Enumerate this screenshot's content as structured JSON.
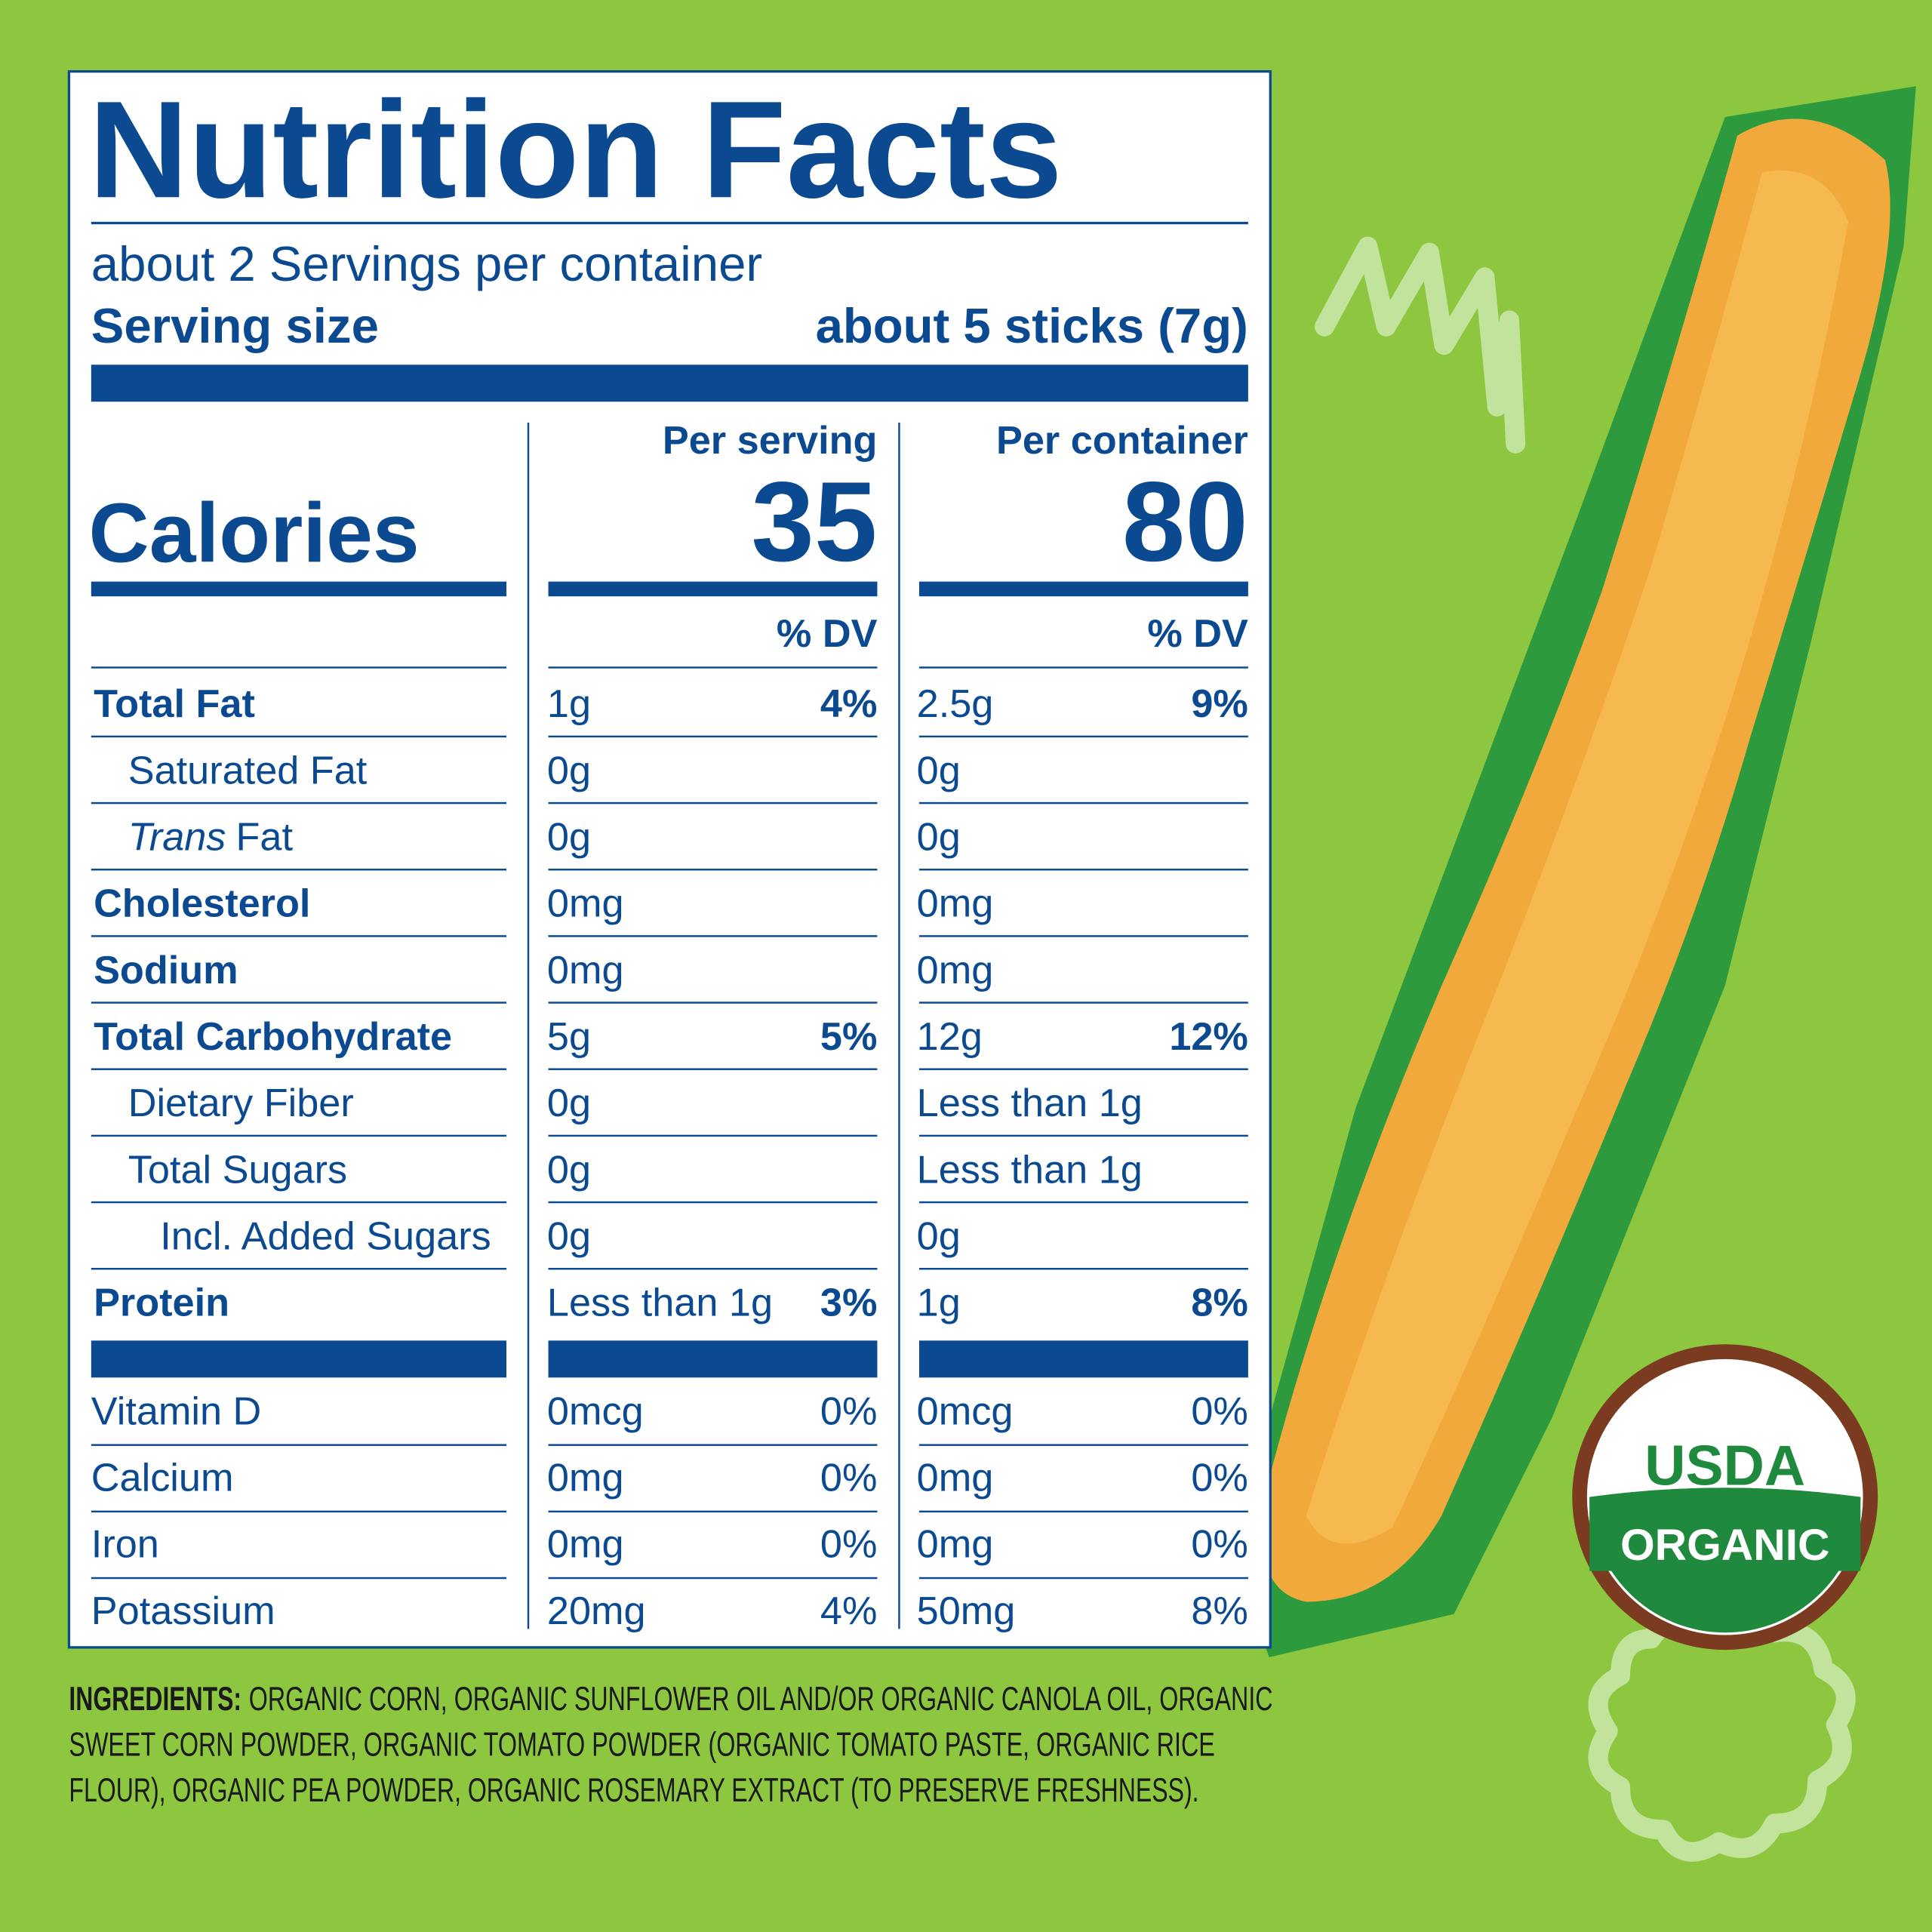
{
  "header": {
    "title": "Nutrition Facts",
    "servings": "about 2 Servings per container",
    "serving_size_label": "Serving size",
    "serving_size_value": "about 5 sticks (7g)"
  },
  "columns": {
    "serving_heading": "Per serving",
    "container_heading": "Per container",
    "calories_label": "Calories",
    "serving_calories": "35",
    "container_calories": "80",
    "serving_dv_heading": "% DV",
    "container_dv_heading": "% DV"
  },
  "nutrients": [
    {
      "label": "Total Fat",
      "level": 0,
      "serving": {
        "amount": "1g",
        "dv": "4%"
      },
      "container": {
        "amount": "2.5g",
        "dv": "9%"
      }
    },
    {
      "label": "Saturated Fat",
      "level": 1,
      "serving": {
        "amount": "0g"
      },
      "container": {
        "amount": "0g"
      }
    },
    {
      "label_italic": "Trans",
      "label": "Fat",
      "level": 1,
      "serving": {
        "amount": "0g"
      },
      "container": {
        "amount": "0g"
      }
    },
    {
      "label": "Cholesterol",
      "level": 0,
      "serving": {
        "amount": "0mg"
      },
      "container": {
        "amount": "0mg"
      }
    },
    {
      "label": "Sodium",
      "level": 0,
      "serving": {
        "amount": "0mg"
      },
      "container": {
        "amount": "0mg"
      }
    },
    {
      "label": "Total Carbohydrate",
      "level": 0,
      "serving": {
        "amount": "5g",
        "dv": "5%"
      },
      "container": {
        "amount": "12g",
        "dv": "12%"
      }
    },
    {
      "label": "Dietary Fiber",
      "level": 1,
      "serving": {
        "amount": "0g"
      },
      "container": {
        "amount": "Less than 1g"
      }
    },
    {
      "label": "Total Sugars",
      "level": 1,
      "serving": {
        "amount": "0g"
      },
      "container": {
        "amount": "Less than 1g"
      }
    },
    {
      "label": "Incl. Added Sugars",
      "level": 2,
      "serving": {
        "amount": "0g"
      },
      "container": {
        "amount": "0g"
      }
    },
    {
      "label": "Protein",
      "level": 0,
      "serving": {
        "amount": "Less than 1g",
        "dv": "3%"
      },
      "container": {
        "amount": "1g",
        "dv": "8%"
      }
    }
  ],
  "vitamins": [
    {
      "label": "Vitamin D",
      "serving": {
        "amount": "0mcg",
        "dv": "0%"
      },
      "container": {
        "amount": "0mcg",
        "dv": "0%"
      }
    },
    {
      "label": "Calcium",
      "serving": {
        "amount": "0mg",
        "dv": "0%"
      },
      "container": {
        "amount": "0mg",
        "dv": "0%"
      }
    },
    {
      "label": "Iron",
      "serving": {
        "amount": "0mg",
        "dv": "0%"
      },
      "container": {
        "amount": "0mg",
        "dv": "0%"
      }
    },
    {
      "label": "Potassium",
      "serving": {
        "amount": "20mg",
        "dv": "4%"
      },
      "container": {
        "amount": "50mg",
        "dv": "8%"
      }
    }
  ],
  "ingredients": {
    "label": "INGREDIENTS:",
    "lines": [
      "ORGANIC CORN, ORGANIC SUNFLOWER OIL AND/OR ORGANIC CANOLA OIL, ORGANIC",
      "SWEET CORN POWDER, ORGANIC TOMATO POWDER (ORGANIC TOMATO PASTE, ORGANIC RICE",
      "FLOUR), ORGANIC PEA POWDER, ORGANIC ROSEMARY EXTRACT (TO PRESERVE FRESHNESS)."
    ]
  },
  "seal": {
    "top": "USDA",
    "bottom": "ORGANIC"
  }
}
